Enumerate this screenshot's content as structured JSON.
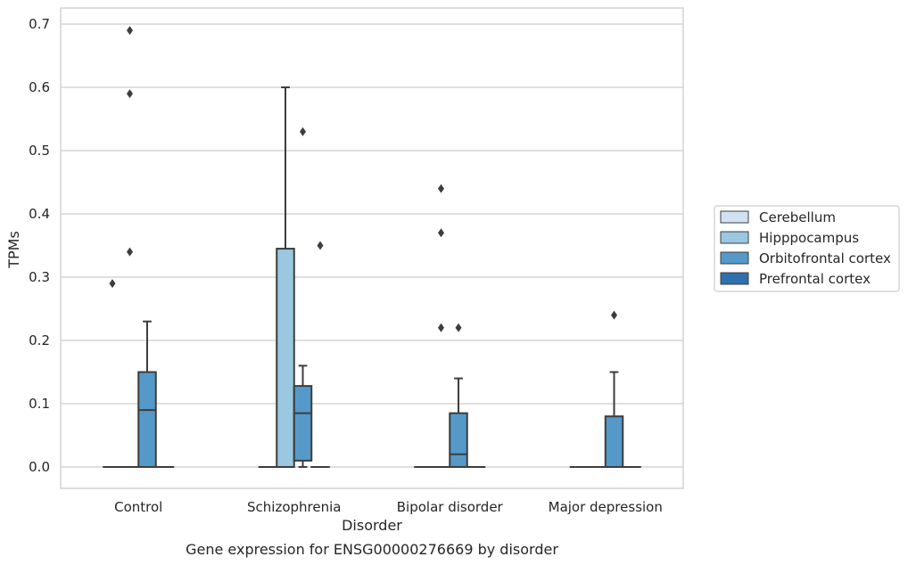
{
  "chart_data": {
    "type": "box",
    "caption": "Gene expression for ENSG00000276669 by disorder",
    "xlabel": "Disorder",
    "ylabel": "TPMs",
    "ylim": [
      -0.034,
      0.727
    ],
    "yticks": [
      0.0,
      0.1,
      0.2,
      0.3,
      0.4,
      0.5,
      0.6,
      0.7
    ],
    "ytick_labels": [
      "0.0",
      "0.1",
      "0.2",
      "0.3",
      "0.4",
      "0.5",
      "0.6",
      "0.7"
    ],
    "grid": "horizontal",
    "legend_position": "right",
    "categories": [
      "Control",
      "Schizophrenia",
      "Bipolar disorder",
      "Major depression"
    ],
    "series": [
      {
        "name": "Cerebellum",
        "color": "#d0e1f2",
        "boxes": [
          {
            "q1": 0.0,
            "median": 0.0,
            "q3": 0.0,
            "whisker_low": 0.0,
            "whisker_high": 0.0,
            "outliers": [
              0.29
            ]
          },
          {
            "q1": 0.0,
            "median": 0.0,
            "q3": 0.0,
            "whisker_low": 0.0,
            "whisker_high": 0.0,
            "outliers": []
          },
          {
            "q1": 0.0,
            "median": 0.0,
            "q3": 0.0,
            "whisker_low": 0.0,
            "whisker_high": 0.0,
            "outliers": []
          },
          {
            "q1": 0.0,
            "median": 0.0,
            "q3": 0.0,
            "whisker_low": 0.0,
            "whisker_high": 0.0,
            "outliers": []
          }
        ]
      },
      {
        "name": "Hipppocampus",
        "color": "#9ac8e0",
        "boxes": [
          {
            "q1": 0.0,
            "median": 0.0,
            "q3": 0.0,
            "whisker_low": 0.0,
            "whisker_high": 0.0,
            "outliers": [
              0.34,
              0.59,
              0.69
            ]
          },
          {
            "q1": 0.0,
            "median": 0.0,
            "q3": 0.345,
            "whisker_low": 0.0,
            "whisker_high": 0.6,
            "outliers": []
          },
          {
            "q1": 0.0,
            "median": 0.0,
            "q3": 0.0,
            "whisker_low": 0.0,
            "whisker_high": 0.0,
            "outliers": [
              0.22,
              0.37,
              0.44
            ]
          },
          {
            "q1": 0.0,
            "median": 0.0,
            "q3": 0.0,
            "whisker_low": 0.0,
            "whisker_high": 0.0,
            "outliers": []
          }
        ]
      },
      {
        "name": "Orbitofrontal cortex",
        "color": "#5599c8",
        "boxes": [
          {
            "q1": 0.0,
            "median": 0.09,
            "q3": 0.15,
            "whisker_low": 0.0,
            "whisker_high": 0.23,
            "outliers": []
          },
          {
            "q1": 0.01,
            "median": 0.085,
            "q3": 0.128,
            "whisker_low": 0.0,
            "whisker_high": 0.16,
            "outliers": [
              0.53
            ]
          },
          {
            "q1": 0.0,
            "median": 0.02,
            "q3": 0.085,
            "whisker_low": 0.0,
            "whisker_high": 0.14,
            "outliers": [
              0.22
            ]
          },
          {
            "q1": 0.0,
            "median": 0.0,
            "q3": 0.08,
            "whisker_low": 0.0,
            "whisker_high": 0.15,
            "outliers": [
              0.24
            ]
          }
        ]
      },
      {
        "name": "Prefrontal cortex",
        "color": "#2e6fae",
        "boxes": [
          {
            "q1": 0.0,
            "median": 0.0,
            "q3": 0.0,
            "whisker_low": 0.0,
            "whisker_high": 0.0,
            "outliers": []
          },
          {
            "q1": 0.0,
            "median": 0.0,
            "q3": 0.0,
            "whisker_low": 0.0,
            "whisker_high": 0.0,
            "outliers": [
              0.35
            ]
          },
          {
            "q1": 0.0,
            "median": 0.0,
            "q3": 0.0,
            "whisker_low": 0.0,
            "whisker_high": 0.0,
            "outliers": []
          },
          {
            "q1": 0.0,
            "median": 0.0,
            "q3": 0.0,
            "whisker_low": 0.0,
            "whisker_high": 0.0,
            "outliers": []
          }
        ]
      }
    ],
    "legend": [
      "Cerebellum",
      "Hipppocampus",
      "Orbitofrontal cortex",
      "Prefrontal cortex"
    ]
  }
}
